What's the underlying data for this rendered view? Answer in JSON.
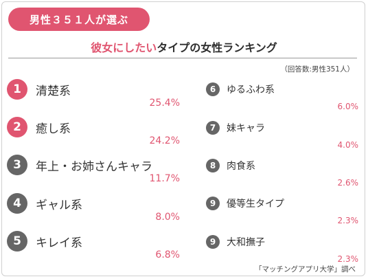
{
  "badge": "男性３５１人が選ぶ",
  "title_highlight": "彼女にしたい",
  "title_rest": "タイプの女性ランキング",
  "note": "（回答数:男性351人）",
  "source": "「マッチングアプリ大学」調べ",
  "colors": {
    "accent": "#e05570",
    "rank_gray": "#666666"
  },
  "chart_data": {
    "type": "table",
    "rows": [
      {
        "rank": "1",
        "label": "清楚系",
        "value": "25.4%"
      },
      {
        "rank": "2",
        "label": "癒し系",
        "value": "24.2%"
      },
      {
        "rank": "3",
        "label": "年上・お姉さんキャラ",
        "value": "11.7%"
      },
      {
        "rank": "4",
        "label": "ギャル系",
        "value": "8.0%"
      },
      {
        "rank": "5",
        "label": "キレイ系",
        "value": "6.8%"
      },
      {
        "rank": "6",
        "label": "ゆるふわ系",
        "value": "6.0%"
      },
      {
        "rank": "7",
        "label": "妹キャラ",
        "value": "4.0%"
      },
      {
        "rank": "8",
        "label": "肉食系",
        "value": "2.6%"
      },
      {
        "rank": "9",
        "label": "優等生タイプ",
        "value": "2.3%"
      },
      {
        "rank": "9",
        "label": "大和撫子",
        "value": "2.3%"
      }
    ]
  }
}
